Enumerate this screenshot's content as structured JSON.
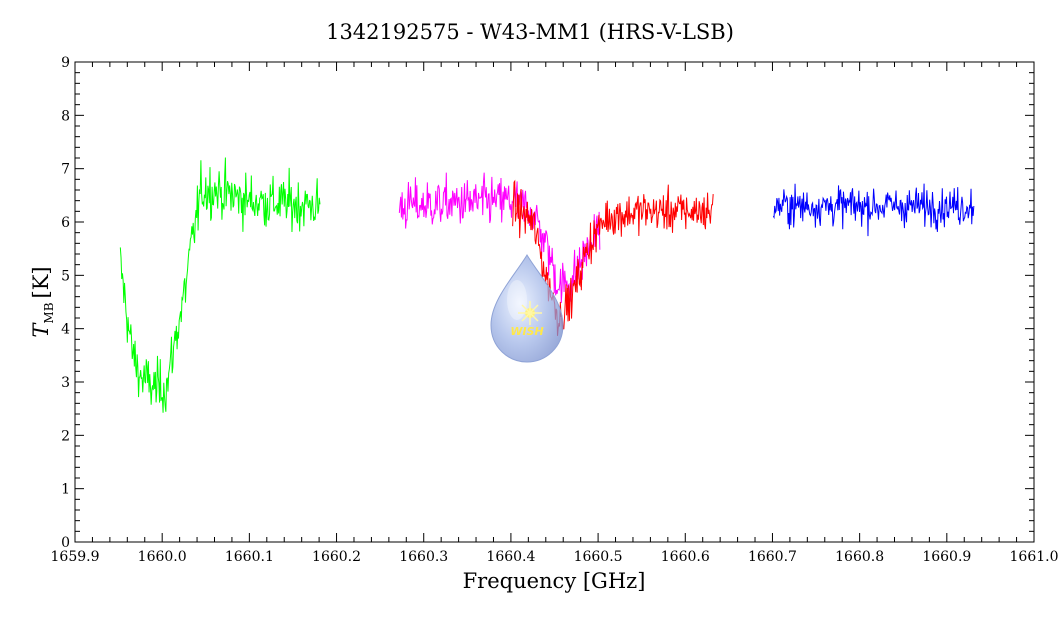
{
  "chart_data": {
    "type": "line",
    "title": "1342192575 - W43-MM1 (HRS-V-LSB)",
    "xlabel": "Frequency [GHz]",
    "ylabel_main": "T",
    "ylabel_sub": "MB",
    "ylabel_unit": "[K]",
    "xlim": [
      1659.9,
      1661.0
    ],
    "ylim": [
      0,
      9
    ],
    "xticks": [
      "1659.9",
      "1660.0",
      "1660.1",
      "1660.2",
      "1660.3",
      "1660.4",
      "1660.5",
      "1660.6",
      "1660.7",
      "1660.8",
      "1660.9",
      "1661.0"
    ],
    "yticks": [
      "0",
      "1",
      "2",
      "3",
      "4",
      "5",
      "6",
      "7",
      "8",
      "9"
    ],
    "grid": false,
    "series": [
      {
        "color": "#00ff00",
        "x_range": [
          1659.952,
          1660.181
        ],
        "noise": 0.75,
        "profile": [
          [
            1659.952,
            5.2
          ],
          [
            1659.965,
            3.6
          ],
          [
            1659.975,
            3.1
          ],
          [
            1659.99,
            2.9
          ],
          [
            1660.005,
            2.9
          ],
          [
            1660.015,
            3.8
          ],
          [
            1660.025,
            4.6
          ],
          [
            1660.035,
            5.7
          ],
          [
            1660.045,
            6.6
          ],
          [
            1660.06,
            6.6
          ],
          [
            1660.1,
            6.4
          ],
          [
            1660.181,
            6.3
          ]
        ]
      },
      {
        "color": "#ff00ff",
        "x_range": [
          1660.272,
          1660.502
        ],
        "noise": 0.7,
        "profile": [
          [
            1660.272,
            6.3
          ],
          [
            1660.4,
            6.4
          ],
          [
            1660.425,
            6.2
          ],
          [
            1660.44,
            5.6
          ],
          [
            1660.455,
            4.8
          ],
          [
            1660.47,
            4.9
          ],
          [
            1660.485,
            5.4
          ],
          [
            1660.502,
            5.9
          ]
        ]
      },
      {
        "color": "#ff0000",
        "x_range": [
          1660.402,
          1660.632
        ],
        "noise": 0.6,
        "profile": [
          [
            1660.402,
            6.3
          ],
          [
            1660.425,
            6.0
          ],
          [
            1660.44,
            5.0
          ],
          [
            1660.455,
            4.2
          ],
          [
            1660.47,
            4.6
          ],
          [
            1660.49,
            5.6
          ],
          [
            1660.51,
            6.1
          ],
          [
            1660.55,
            6.2
          ],
          [
            1660.632,
            6.2
          ]
        ]
      },
      {
        "color": "#0000ff",
        "x_range": [
          1660.701,
          1660.931
        ],
        "noise": 0.55,
        "profile": [
          [
            1660.701,
            6.3
          ],
          [
            1660.931,
            6.3
          ]
        ]
      }
    ],
    "logo": "WISH"
  }
}
